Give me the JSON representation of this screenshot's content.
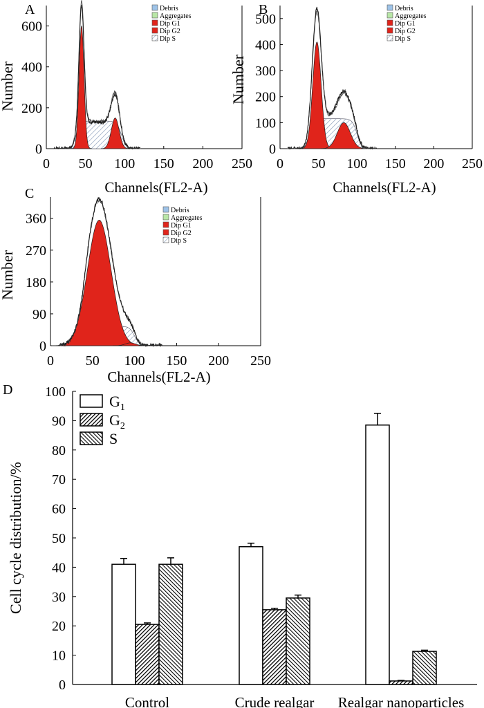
{
  "chart_data": [
    {
      "type": "histogram",
      "panel_label": "A",
      "xlabel": "Channels(FL2-A)",
      "ylabel": "Number",
      "xlim": [
        0,
        250
      ],
      "ylim": [
        0,
        700
      ],
      "xticks": [
        "0",
        "50",
        "100",
        "150",
        "200",
        "250"
      ],
      "yticks": [
        "0",
        "200",
        "400",
        "600"
      ],
      "ytick_values": [
        0,
        200,
        400,
        600
      ],
      "legend": [
        "Debris",
        "Aggregates",
        "Dip G1",
        "Dip G2",
        "Dip S"
      ],
      "g1": {
        "center": 45,
        "sd": 3.2,
        "peak": 600
      },
      "g2": {
        "center": 88,
        "sd": 5.0,
        "peak": 150
      },
      "s": {
        "start": 38,
        "end": 96,
        "level": 135
      },
      "measured_peak": 700,
      "x_end": 112
    },
    {
      "type": "histogram",
      "panel_label": "B",
      "xlabel": "Channels(FL2-A)",
      "ylabel": "Number",
      "xlim": [
        0,
        250
      ],
      "ylim": [
        0,
        550
      ],
      "xticks": [
        "0",
        "50",
        "100",
        "150",
        "200",
        "250"
      ],
      "yticks": [
        "0",
        "100",
        "200",
        "300",
        "400",
        "500"
      ],
      "ytick_values": [
        0,
        100,
        200,
        300,
        400,
        500
      ],
      "legend": [
        "Debris",
        "Aggregates",
        "Dip G1",
        "Dip G2",
        "Dip S"
      ],
      "g1": {
        "center": 48,
        "sd": 5.5,
        "peak": 410
      },
      "g2": {
        "center": 83,
        "sd": 8.5,
        "peak": 100
      },
      "s": {
        "start": 38,
        "end": 100,
        "level": 115
      },
      "measured_peak": 540,
      "x_end": 118
    },
    {
      "type": "histogram",
      "panel_label": "C",
      "xlabel": "Channels(FL2-A)",
      "ylabel": "Number",
      "xlim": [
        0,
        250
      ],
      "ylim": [
        0,
        420
      ],
      "xticks": [
        "0",
        "50",
        "100",
        "150",
        "200",
        "250"
      ],
      "yticks": [
        "0",
        "90",
        "180",
        "270",
        "360"
      ],
      "ytick_values": [
        0,
        90,
        180,
        270,
        360
      ],
      "legend": [
        "Debris",
        "Aggregates",
        "Dip G1",
        "Dip G2",
        "Dip S"
      ],
      "g1": {
        "center": 58,
        "sd": 14,
        "peak": 355
      },
      "g2": {
        "center": 95,
        "sd": 6,
        "peak": 8
      },
      "s": {
        "start": 40,
        "end": 100,
        "level": 55
      },
      "measured_peak": 415,
      "x_end": 125
    },
    {
      "type": "bar",
      "panel_label": "D",
      "ylabel": "Cell cycle distribution/%",
      "ylim": [
        0,
        100
      ],
      "yticks": [
        "0",
        "10",
        "20",
        "30",
        "40",
        "50",
        "60",
        "70",
        "80",
        "90",
        "100"
      ],
      "ytick_values": [
        0,
        10,
        20,
        30,
        40,
        50,
        60,
        70,
        80,
        90,
        100
      ],
      "categories": [
        "Control",
        "Crude realgar",
        "Realgar nanoparticles"
      ],
      "series": [
        {
          "name": "G1",
          "label_main": "G",
          "label_sub": "1",
          "pattern": "none",
          "values": [
            41,
            47,
            88.5
          ],
          "errors": [
            2,
            1.2,
            4
          ]
        },
        {
          "name": "G2",
          "label_main": "G",
          "label_sub": "2",
          "pattern": "dense",
          "values": [
            20.5,
            25.5,
            1.2
          ],
          "errors": [
            0.5,
            0.5,
            0.2
          ]
        },
        {
          "name": "S",
          "label_main": "S",
          "label_sub": "",
          "pattern": "diag",
          "values": [
            41,
            29.5,
            11.3
          ],
          "errors": [
            2.2,
            1,
            0.4
          ]
        }
      ]
    }
  ],
  "colors": {
    "debris": "#9ec3e8",
    "aggregates": "#b8e6a6",
    "dip_g1": "#e0241b",
    "dip_g2": "#e0241b",
    "dip_s": "#c9d4e6"
  }
}
